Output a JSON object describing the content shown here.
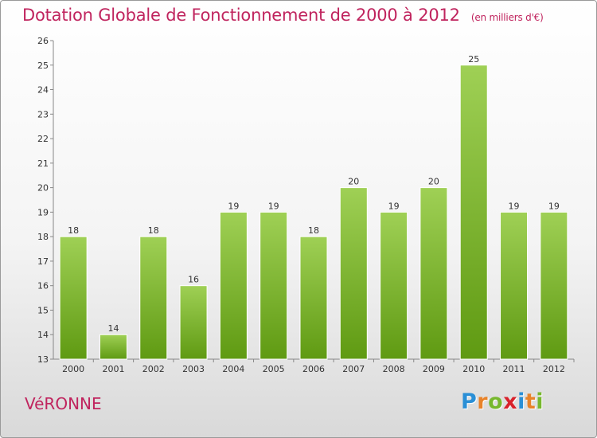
{
  "header": {
    "title": "Dotation Globale de Fonctionnement de 2000 à 2012",
    "subtitle": "(en milliers d'€)"
  },
  "footer": {
    "town": "VéRONNE",
    "logo_text": "Proxiti",
    "logo_letters": [
      {
        "ch": "P",
        "color": "#2a8fd6"
      },
      {
        "ch": "r",
        "color": "#e8832a"
      },
      {
        "ch": "o",
        "color": "#77b82e"
      },
      {
        "ch": "x",
        "color": "#d8222b"
      },
      {
        "ch": "i",
        "color": "#2a8fd6"
      },
      {
        "ch": "t",
        "color": "#e8832a"
      },
      {
        "ch": "i",
        "color": "#77b82e"
      }
    ]
  },
  "colors": {
    "title": "#c0245e",
    "bar_light": "#9fd055",
    "bar_dark": "#5f9a12",
    "axis_text": "#333333"
  },
  "chart_data": {
    "type": "bar",
    "categories": [
      "2000",
      "2001",
      "2002",
      "2003",
      "2004",
      "2005",
      "2006",
      "2007",
      "2008",
      "2009",
      "2010",
      "2011",
      "2012"
    ],
    "values": [
      18,
      14,
      18,
      16,
      19,
      19,
      18,
      20,
      19,
      20,
      25,
      19,
      19
    ],
    "ylim": [
      13,
      26
    ],
    "yticks": [
      13,
      14,
      15,
      16,
      17,
      18,
      19,
      20,
      21,
      22,
      23,
      24,
      25,
      26
    ],
    "grid": false,
    "data_labels": true
  }
}
